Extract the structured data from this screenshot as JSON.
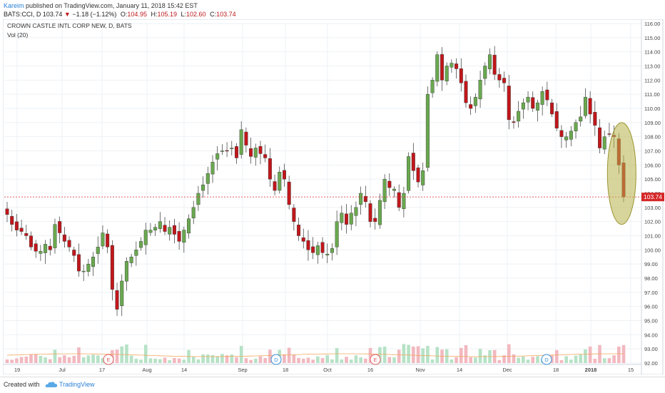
{
  "header": {
    "author": "Kareim",
    "published_text": " published on TradingView.com, January 11, 2018 15:42 EST",
    "symbol_line": "BATS:CCI, D",
    "last_price": "103.74",
    "change_arrow": "▼",
    "change_text": "−1.18 (−1.12%)",
    "o_label": "O:",
    "o_value": "104.95",
    "h_label": "H:",
    "h_value": "105.19",
    "l_label": "L:",
    "l_value": "102.60",
    "c_label": "C:",
    "c_value": "103.74"
  },
  "chart_title": "CROWN CASTLE INTL CORP NEW, D, BATS",
  "indicator_label": "Vol (20)",
  "current_price_tag": "103.74",
  "footer": {
    "created_with": "Created with",
    "brand": "TradingView"
  },
  "colors": {
    "up": "#6aa84f",
    "down": "#c0171b",
    "vol_up": "#b6e2c6",
    "vol_down": "#f2b8bf",
    "highlight_fill": "#b8b24a",
    "price_line": "#d62728",
    "accent": "#2a7fd4"
  },
  "chart_data": {
    "type": "candlestick",
    "title": "CROWN CASTLE INTL CORP NEW, D, BATS",
    "ylim": [
      92.0,
      116.0
    ],
    "y_ticks": [
      "92.00",
      "93.00",
      "94.00",
      "95.00",
      "96.00",
      "97.00",
      "98.00",
      "99.00",
      "100.00",
      "101.00",
      "102.00",
      "103.00",
      "104.00",
      "105.00",
      "106.00",
      "107.00",
      "108.00",
      "109.00",
      "110.00",
      "111.00",
      "112.00",
      "113.00",
      "114.00",
      "115.00",
      "116.00"
    ],
    "x_ticks": [
      "19",
      "Jul",
      "17",
      "Aug",
      "14",
      "Sep",
      "18",
      "Oct",
      "16",
      "Nov",
      "14",
      "Dec",
      "18",
      "2018",
      "15"
    ],
    "event_markers": [
      {
        "label": "E",
        "color": "#e05a5a"
      },
      {
        "label": "D",
        "color": "#3a8fd8"
      },
      {
        "label": "E",
        "color": "#e05a5a"
      },
      {
        "label": "D",
        "color": "#3a8fd8"
      }
    ],
    "last_close": 103.74,
    "close_series": [
      102.5,
      101.8,
      101.4,
      101.3,
      101.0,
      100.2,
      99.9,
      99.9,
      100.4,
      100.0,
      101.8,
      101.2,
      100.6,
      100.2,
      99.6,
      98.5,
      98.5,
      99.0,
      99.5,
      100.2,
      101.2,
      100.2,
      97.2,
      95.8,
      97.8,
      99.2,
      99.5,
      100.0,
      100.6,
      101.4,
      101.4,
      101.6,
      102.0,
      101.3,
      101.6,
      101.1,
      100.6,
      101.4,
      102.2,
      103.0,
      104.0,
      104.6,
      105.4,
      106.2,
      106.8,
      107.0,
      107.0,
      107.2,
      106.5,
      108.5,
      107.4,
      106.6,
      107.2,
      106.8,
      106.5,
      105.0,
      104.2,
      105.5,
      105.0,
      103.2,
      102.0,
      101.0,
      100.6,
      100.0,
      99.8,
      100.3,
      99.8,
      99.7,
      100.1,
      102.0,
      102.6,
      101.8,
      102.6,
      103.0,
      104.0,
      103.4,
      102.0,
      102.0,
      103.5,
      105.0,
      104.4,
      104.3,
      103.0,
      104.0,
      106.6,
      105.6,
      104.8,
      105.6,
      111.0,
      112.0,
      113.8,
      112.0,
      113.0,
      113.2,
      112.8,
      111.8,
      110.4,
      110.0,
      110.8,
      112.0,
      113.0,
      113.8,
      112.4,
      112.0,
      111.8,
      109.2,
      109.0,
      109.8,
      110.4,
      110.8,
      110.0,
      110.4,
      111.2,
      110.6,
      109.6,
      108.6,
      108.0,
      108.0,
      108.4,
      109.0,
      109.4,
      110.8,
      109.6,
      108.8,
      107.2,
      108.0,
      108.2,
      108.0,
      106.0,
      103.74
    ],
    "volume_series": "visual only (not labeled)"
  }
}
